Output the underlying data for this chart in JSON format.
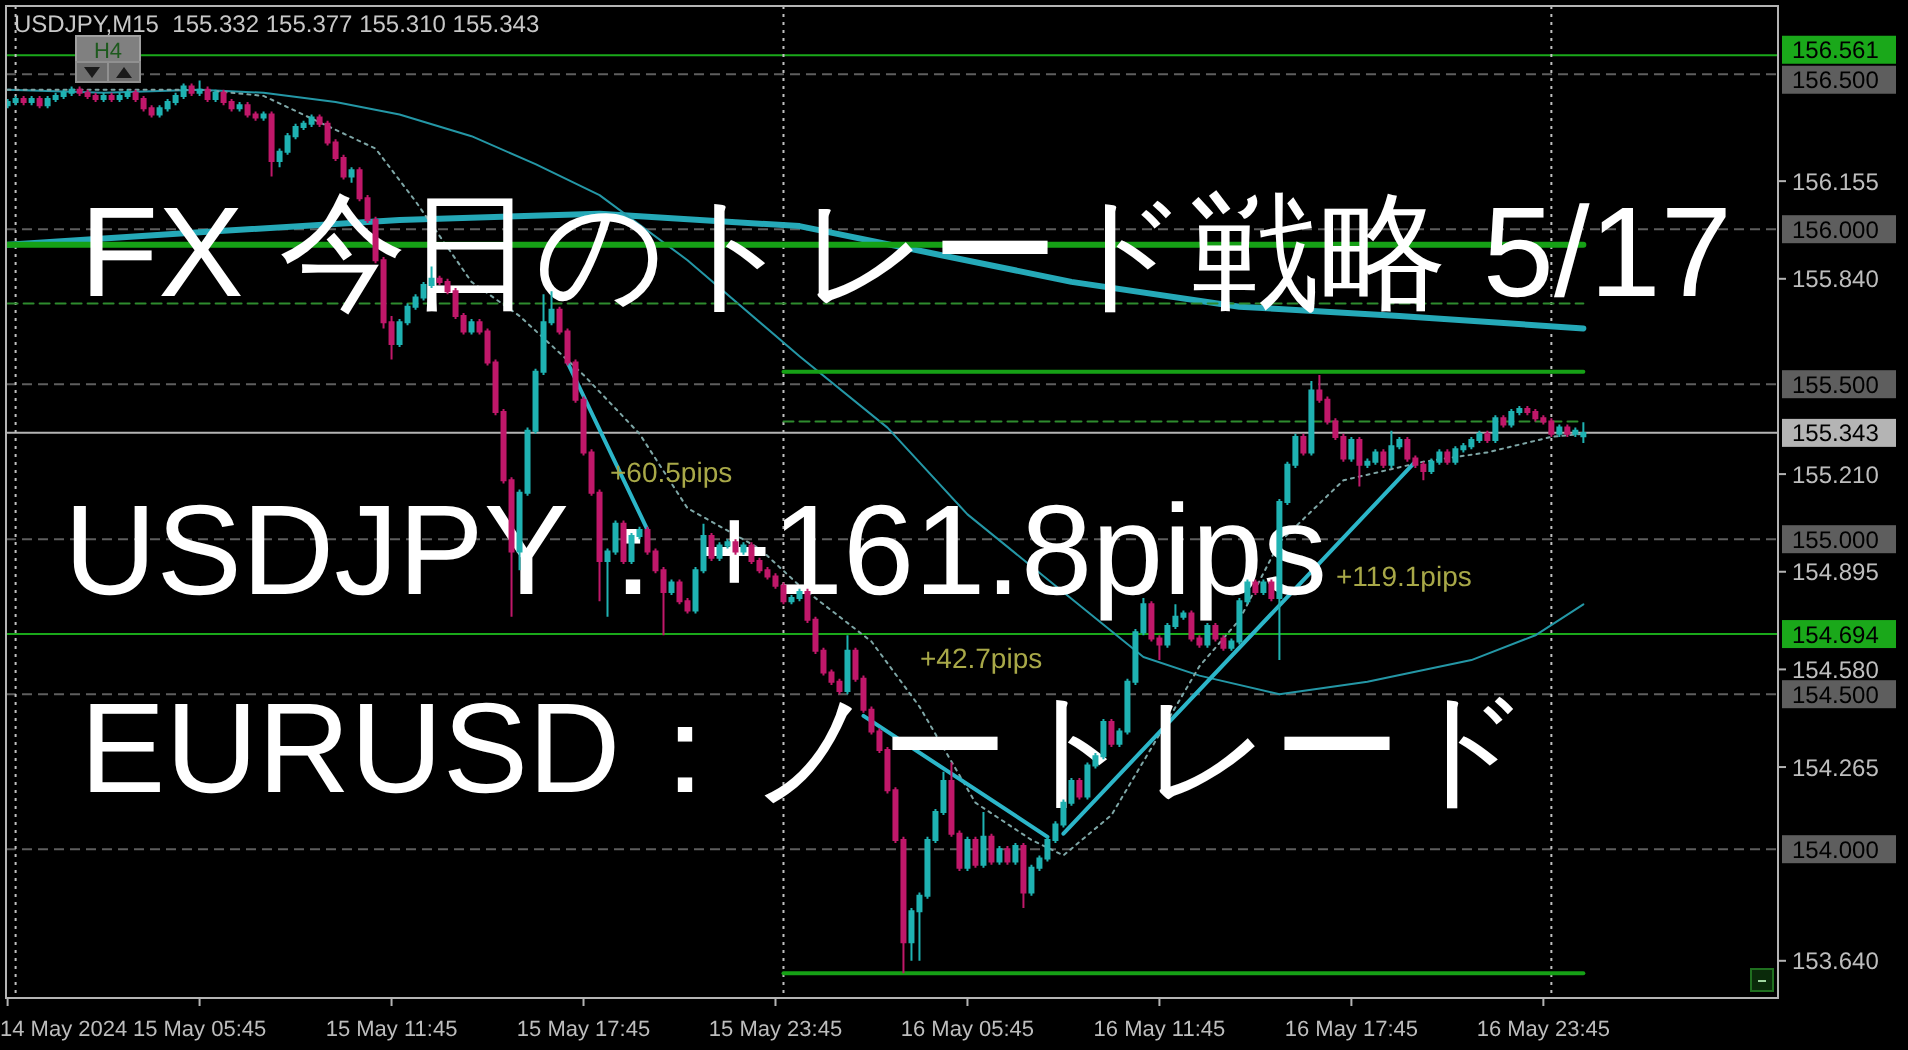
{
  "chart_data": {
    "type": "candlestick",
    "title": "FX 今日のトレード戦略 5/17",
    "subtitle": "USDJPY,M15  155.332 155.377 155.310 155.343",
    "annotations": [
      "USDJPY：+161.8pips",
      "EURUSD：ノートレード",
      "H4",
      "+60.5pips",
      "+42.7pips",
      "+119.1pips"
    ],
    "x": [
      "2024-05-14T23:45",
      "2024-05-15T00:00",
      "2024-05-15T00:15",
      "2024-05-15T00:30",
      "2024-05-15T00:45",
      "2024-05-15T01:00",
      "2024-05-15T01:15",
      "2024-05-15T01:30",
      "2024-05-15T01:45",
      "2024-05-15T02:00",
      "2024-05-15T02:15",
      "2024-05-15T02:30",
      "2024-05-15T02:45",
      "2024-05-15T03:00",
      "2024-05-15T03:15",
      "2024-05-15T03:30",
      "2024-05-15T03:45",
      "2024-05-15T04:00",
      "2024-05-15T04:15",
      "2024-05-15T04:30",
      "2024-05-15T04:45",
      "2024-05-15T05:00",
      "2024-05-15T05:15",
      "2024-05-15T05:30",
      "2024-05-15T05:45",
      "2024-05-15T06:00",
      "2024-05-15T06:15",
      "2024-05-15T06:30",
      "2024-05-15T06:45",
      "2024-05-15T07:00",
      "2024-05-15T07:15",
      "2024-05-15T07:30",
      "2024-05-15T07:45",
      "2024-05-15T08:00",
      "2024-05-15T08:15",
      "2024-05-15T08:30",
      "2024-05-15T08:45",
      "2024-05-15T09:00",
      "2024-05-15T09:15",
      "2024-05-15T09:30",
      "2024-05-15T09:45",
      "2024-05-15T10:00",
      "2024-05-15T10:15",
      "2024-05-15T10:30",
      "2024-05-15T10:45",
      "2024-05-15T11:00",
      "2024-05-15T11:15",
      "2024-05-15T11:30",
      "2024-05-15T11:45",
      "2024-05-15T12:00",
      "2024-05-15T12:15",
      "2024-05-15T12:30",
      "2024-05-15T12:45",
      "2024-05-15T13:00",
      "2024-05-15T13:15",
      "2024-05-15T13:30",
      "2024-05-15T13:45",
      "2024-05-15T14:00",
      "2024-05-15T14:15",
      "2024-05-15T14:30",
      "2024-05-15T14:45",
      "2024-05-15T15:00",
      "2024-05-15T15:15",
      "2024-05-15T15:30",
      "2024-05-15T15:45",
      "2024-05-15T16:00",
      "2024-05-15T16:15",
      "2024-05-15T16:30",
      "2024-05-15T16:45",
      "2024-05-15T17:00",
      "2024-05-15T17:15",
      "2024-05-15T17:30",
      "2024-05-15T17:45",
      "2024-05-15T18:00",
      "2024-05-15T18:15",
      "2024-05-15T18:30",
      "2024-05-15T18:45",
      "2024-05-15T19:00",
      "2024-05-15T19:15",
      "2024-05-15T19:30",
      "2024-05-15T19:45",
      "2024-05-15T20:00",
      "2024-05-15T20:15",
      "2024-05-15T20:30",
      "2024-05-15T20:45",
      "2024-05-15T21:00",
      "2024-05-15T21:15",
      "2024-05-15T21:30",
      "2024-05-15T21:45",
      "2024-05-15T22:00",
      "2024-05-15T22:15",
      "2024-05-15T22:30",
      "2024-05-15T22:45",
      "2024-05-15T23:00",
      "2024-05-15T23:15",
      "2024-05-15T23:30",
      "2024-05-15T23:45",
      "2024-05-16T00:00",
      "2024-05-16T00:15",
      "2024-05-16T00:30",
      "2024-05-16T00:45",
      "2024-05-16T01:00",
      "2024-05-16T01:15",
      "2024-05-16T01:30",
      "2024-05-16T01:45",
      "2024-05-16T02:00",
      "2024-05-16T02:15",
      "2024-05-16T02:30",
      "2024-05-16T02:45",
      "2024-05-16T03:00",
      "2024-05-16T03:15",
      "2024-05-16T03:30",
      "2024-05-16T03:45",
      "2024-05-16T04:00",
      "2024-05-16T04:15",
      "2024-05-16T04:30",
      "2024-05-16T04:45",
      "2024-05-16T05:00",
      "2024-05-16T05:15",
      "2024-05-16T05:30",
      "2024-05-16T05:45",
      "2024-05-16T06:00",
      "2024-05-16T06:15",
      "2024-05-16T06:30",
      "2024-05-16T06:45",
      "2024-05-16T07:00",
      "2024-05-16T07:15",
      "2024-05-16T07:30",
      "2024-05-16T07:45",
      "2024-05-16T08:00",
      "2024-05-16T08:15",
      "2024-05-16T08:30",
      "2024-05-16T08:45",
      "2024-05-16T09:00",
      "2024-05-16T09:15",
      "2024-05-16T09:30",
      "2024-05-16T09:45",
      "2024-05-16T10:00",
      "2024-05-16T10:15",
      "2024-05-16T10:30",
      "2024-05-16T10:45",
      "2024-05-16T11:00",
      "2024-05-16T11:15",
      "2024-05-16T11:30",
      "2024-05-16T11:45",
      "2024-05-16T12:00",
      "2024-05-16T12:15",
      "2024-05-16T12:30",
      "2024-05-16T12:45",
      "2024-05-16T13:00",
      "2024-05-16T13:15",
      "2024-05-16T13:30",
      "2024-05-16T13:45",
      "2024-05-16T14:00",
      "2024-05-16T14:15",
      "2024-05-16T14:30",
      "2024-05-16T14:45",
      "2024-05-16T15:00",
      "2024-05-16T15:15",
      "2024-05-16T15:30",
      "2024-05-16T15:45",
      "2024-05-16T16:00",
      "2024-05-16T16:15",
      "2024-05-16T16:30",
      "2024-05-16T16:45",
      "2024-05-16T17:00",
      "2024-05-16T17:15",
      "2024-05-16T17:30",
      "2024-05-16T17:45",
      "2024-05-16T18:00",
      "2024-05-16T18:15",
      "2024-05-16T18:30",
      "2024-05-16T18:45",
      "2024-05-16T19:00",
      "2024-05-16T19:15",
      "2024-05-16T19:30",
      "2024-05-16T19:45",
      "2024-05-16T20:00",
      "2024-05-16T20:15",
      "2024-05-16T20:30",
      "2024-05-16T20:45",
      "2024-05-16T21:00",
      "2024-05-16T21:15",
      "2024-05-16T21:30",
      "2024-05-16T21:45",
      "2024-05-16T22:00",
      "2024-05-16T22:15",
      "2024-05-16T22:30",
      "2024-05-16T22:45",
      "2024-05-16T23:00",
      "2024-05-16T23:15",
      "2024-05-16T23:30",
      "2024-05-16T23:45",
      "2024-05-17T00:00",
      "2024-05-17T00:15",
      "2024-05-17T00:30",
      "2024-05-17T00:45",
      "2024-05-17T01:00"
    ],
    "ohlc": [
      [
        156.4,
        156.42,
        156.39,
        156.41
      ],
      [
        156.41,
        156.43,
        156.4,
        156.42
      ],
      [
        156.42,
        156.43,
        156.4,
        156.41
      ],
      [
        156.41,
        156.43,
        156.4,
        156.42
      ],
      [
        156.42,
        156.43,
        156.39,
        156.4
      ],
      [
        156.4,
        156.43,
        156.39,
        156.42
      ],
      [
        156.42,
        156.44,
        156.41,
        156.43
      ],
      [
        156.43,
        156.45,
        156.42,
        156.44
      ],
      [
        156.44,
        156.46,
        156.43,
        156.45
      ],
      [
        156.45,
        156.46,
        156.43,
        156.44
      ],
      [
        156.44,
        156.45,
        156.42,
        156.43
      ],
      [
        156.43,
        156.44,
        156.41,
        156.42
      ],
      [
        156.42,
        156.44,
        156.41,
        156.43
      ],
      [
        156.43,
        156.44,
        156.41,
        156.42
      ],
      [
        156.42,
        156.44,
        156.41,
        156.43
      ],
      [
        156.43,
        156.45,
        156.42,
        156.44
      ],
      [
        156.44,
        156.45,
        156.41,
        156.42
      ],
      [
        156.42,
        156.43,
        156.38,
        156.39
      ],
      [
        156.39,
        156.4,
        156.36,
        156.37
      ],
      [
        156.37,
        156.4,
        156.36,
        156.39
      ],
      [
        156.39,
        156.42,
        156.38,
        156.41
      ],
      [
        156.41,
        156.44,
        156.4,
        156.43
      ],
      [
        156.43,
        156.47,
        156.42,
        156.46
      ],
      [
        156.46,
        156.47,
        156.43,
        156.44
      ],
      [
        156.44,
        156.48,
        156.43,
        156.45
      ],
      [
        156.45,
        156.46,
        156.41,
        156.42
      ],
      [
        156.42,
        156.45,
        156.41,
        156.44
      ],
      [
        156.44,
        156.45,
        156.4,
        156.41
      ],
      [
        156.41,
        156.42,
        156.38,
        156.39
      ],
      [
        156.39,
        156.41,
        156.38,
        156.4
      ],
      [
        156.4,
        156.41,
        156.36,
        156.37
      ],
      [
        156.37,
        156.38,
        156.35,
        156.36
      ],
      [
        156.36,
        156.38,
        156.35,
        156.37
      ],
      [
        156.37,
        156.38,
        156.17,
        156.22
      ],
      [
        156.22,
        156.26,
        156.2,
        156.25
      ],
      [
        156.25,
        156.31,
        156.24,
        156.3
      ],
      [
        156.3,
        156.34,
        156.29,
        156.33
      ],
      [
        156.33,
        156.35,
        156.32,
        156.34
      ],
      [
        156.34,
        156.37,
        156.33,
        156.36
      ],
      [
        156.36,
        156.37,
        156.33,
        156.34
      ],
      [
        156.34,
        156.35,
        156.27,
        156.28
      ],
      [
        156.28,
        156.29,
        156.22,
        156.23
      ],
      [
        156.23,
        156.24,
        156.16,
        156.17
      ],
      [
        156.17,
        156.2,
        156.15,
        156.19
      ],
      [
        156.19,
        156.2,
        156.09,
        156.1
      ],
      [
        156.1,
        156.11,
        156.02,
        156.03
      ],
      [
        156.03,
        156.04,
        155.89,
        155.9
      ],
      [
        155.9,
        155.91,
        155.68,
        155.7
      ],
      [
        155.7,
        155.72,
        155.58,
        155.63
      ],
      [
        155.63,
        155.71,
        155.62,
        155.7
      ],
      [
        155.7,
        155.76,
        155.69,
        155.75
      ],
      [
        155.75,
        155.79,
        155.74,
        155.78
      ],
      [
        155.78,
        155.83,
        155.77,
        155.82
      ],
      [
        155.82,
        155.88,
        155.81,
        155.84
      ],
      [
        155.84,
        155.85,
        155.82,
        155.83
      ],
      [
        155.83,
        155.84,
        155.79,
        155.8
      ],
      [
        155.8,
        155.81,
        155.71,
        155.72
      ],
      [
        155.72,
        155.73,
        155.66,
        155.67
      ],
      [
        155.67,
        155.71,
        155.66,
        155.7
      ],
      [
        155.7,
        155.71,
        155.66,
        155.67
      ],
      [
        155.67,
        155.68,
        155.56,
        155.57
      ],
      [
        155.57,
        155.58,
        155.4,
        155.41
      ],
      [
        155.41,
        155.42,
        155.18,
        155.19
      ],
      [
        155.19,
        155.2,
        154.75,
        154.96
      ],
      [
        154.96,
        155.16,
        154.9,
        155.15
      ],
      [
        155.15,
        155.36,
        155.14,
        155.35
      ],
      [
        155.35,
        155.55,
        155.34,
        155.54
      ],
      [
        155.54,
        155.79,
        155.53,
        155.7
      ],
      [
        155.7,
        155.8,
        155.69,
        155.74
      ],
      [
        155.74,
        155.75,
        155.66,
        155.67
      ],
      [
        155.67,
        155.68,
        155.56,
        155.57
      ],
      [
        155.57,
        155.58,
        155.44,
        155.45
      ],
      [
        155.45,
        155.46,
        155.27,
        155.28
      ],
      [
        155.28,
        155.29,
        155.14,
        155.15
      ],
      [
        155.15,
        155.16,
        154.8,
        154.93
      ],
      [
        154.93,
        154.97,
        154.75,
        154.96
      ],
      [
        154.96,
        155.06,
        154.95,
        155.05
      ],
      [
        155.05,
        155.06,
        154.92,
        154.93
      ],
      [
        154.93,
        155.02,
        154.92,
        155.01
      ],
      [
        155.01,
        155.04,
        155.0,
        155.03
      ],
      [
        155.03,
        155.04,
        154.95,
        154.96
      ],
      [
        154.96,
        154.97,
        154.89,
        154.9
      ],
      [
        154.9,
        154.91,
        154.69,
        154.83
      ],
      [
        154.83,
        154.87,
        154.82,
        154.86
      ],
      [
        154.86,
        154.87,
        154.79,
        154.8
      ],
      [
        154.8,
        154.81,
        154.76,
        154.77
      ],
      [
        154.77,
        154.91,
        154.76,
        154.9
      ],
      [
        154.9,
        155.05,
        154.89,
        155.01
      ],
      [
        155.01,
        155.02,
        154.93,
        154.94
      ],
      [
        154.94,
        154.99,
        154.93,
        154.98
      ],
      [
        154.98,
        155.0,
        154.97,
        154.99
      ],
      [
        154.99,
        155.0,
        154.95,
        154.96
      ],
      [
        154.96,
        154.99,
        154.95,
        154.98
      ],
      [
        154.98,
        154.99,
        154.92,
        154.93
      ],
      [
        154.93,
        154.94,
        154.89,
        154.9
      ],
      [
        154.9,
        154.91,
        154.87,
        154.88
      ],
      [
        154.88,
        154.89,
        154.84,
        154.85
      ],
      [
        154.85,
        154.86,
        154.79,
        154.8
      ],
      [
        154.8,
        154.82,
        154.79,
        154.81
      ],
      [
        154.81,
        154.84,
        154.8,
        154.83
      ],
      [
        154.83,
        154.84,
        154.73,
        154.74
      ],
      [
        154.74,
        154.75,
        154.63,
        154.64
      ],
      [
        154.64,
        154.65,
        154.56,
        154.57
      ],
      [
        154.57,
        154.58,
        154.53,
        154.54
      ],
      [
        154.54,
        154.55,
        154.5,
        154.51
      ],
      [
        154.51,
        154.69,
        154.5,
        154.64
      ],
      [
        154.64,
        154.65,
        154.54,
        154.55
      ],
      [
        154.55,
        154.56,
        154.44,
        154.45
      ],
      [
        154.45,
        154.46,
        154.37,
        154.38
      ],
      [
        154.38,
        154.39,
        154.31,
        154.32
      ],
      [
        154.32,
        154.33,
        154.18,
        154.19
      ],
      [
        154.19,
        154.2,
        154.02,
        154.03
      ],
      [
        154.03,
        154.04,
        153.6,
        153.7
      ],
      [
        153.7,
        153.81,
        153.64,
        153.8
      ],
      [
        153.8,
        153.86,
        153.64,
        153.85
      ],
      [
        153.85,
        154.04,
        153.84,
        154.03
      ],
      [
        154.03,
        154.13,
        154.02,
        154.12
      ],
      [
        154.12,
        154.25,
        154.11,
        154.22
      ],
      [
        154.22,
        154.28,
        154.04,
        154.05
      ],
      [
        154.05,
        154.06,
        153.93,
        153.94
      ],
      [
        153.94,
        154.04,
        153.93,
        154.03
      ],
      [
        154.03,
        154.04,
        153.94,
        153.95
      ],
      [
        153.95,
        154.12,
        153.94,
        154.04
      ],
      [
        154.04,
        154.05,
        153.95,
        153.96
      ],
      [
        153.96,
        154.01,
        153.95,
        154.0
      ],
      [
        154.0,
        154.01,
        153.95,
        153.96
      ],
      [
        153.96,
        154.02,
        153.95,
        154.01
      ],
      [
        154.01,
        154.02,
        153.81,
        153.86
      ],
      [
        153.86,
        153.95,
        153.85,
        153.94
      ],
      [
        153.94,
        153.98,
        153.93,
        153.97
      ],
      [
        153.97,
        154.04,
        153.96,
        154.03
      ],
      [
        154.03,
        154.09,
        154.02,
        154.08
      ],
      [
        154.08,
        154.16,
        154.07,
        154.15
      ],
      [
        154.15,
        154.23,
        154.14,
        154.22
      ],
      [
        154.22,
        154.23,
        154.16,
        154.17
      ],
      [
        154.17,
        154.28,
        154.16,
        154.27
      ],
      [
        154.27,
        154.31,
        154.26,
        154.3
      ],
      [
        154.3,
        154.42,
        154.29,
        154.41
      ],
      [
        154.41,
        154.42,
        154.33,
        154.34
      ],
      [
        154.34,
        154.39,
        154.33,
        154.38
      ],
      [
        154.38,
        154.55,
        154.37,
        154.54
      ],
      [
        154.54,
        154.71,
        154.53,
        154.7
      ],
      [
        154.7,
        154.81,
        154.69,
        154.79
      ],
      [
        154.79,
        154.8,
        154.67,
        154.68
      ],
      [
        154.68,
        154.69,
        154.61,
        154.66
      ],
      [
        154.66,
        154.73,
        154.65,
        154.72
      ],
      [
        154.72,
        154.79,
        154.71,
        154.75
      ],
      [
        154.75,
        154.77,
        154.74,
        154.76
      ],
      [
        154.76,
        154.77,
        154.67,
        154.68
      ],
      [
        154.68,
        154.69,
        154.65,
        154.66
      ],
      [
        154.66,
        154.73,
        154.65,
        154.72
      ],
      [
        154.72,
        154.73,
        154.67,
        154.68
      ],
      [
        154.68,
        154.69,
        154.64,
        154.65
      ],
      [
        154.65,
        154.68,
        154.64,
        154.67
      ],
      [
        154.67,
        154.81,
        154.66,
        154.8
      ],
      [
        154.8,
        154.87,
        154.79,
        154.86
      ],
      [
        154.86,
        154.87,
        154.82,
        154.83
      ],
      [
        154.83,
        154.87,
        154.82,
        154.86
      ],
      [
        154.86,
        154.87,
        154.8,
        154.81
      ],
      [
        154.81,
        155.13,
        154.61,
        155.12
      ],
      [
        155.12,
        155.25,
        155.11,
        155.24
      ],
      [
        155.24,
        155.34,
        155.23,
        155.33
      ],
      [
        155.33,
        155.34,
        155.27,
        155.28
      ],
      [
        155.28,
        155.51,
        155.27,
        155.48
      ],
      [
        155.48,
        155.53,
        155.44,
        155.45
      ],
      [
        155.45,
        155.46,
        155.37,
        155.38
      ],
      [
        155.38,
        155.39,
        155.32,
        155.33
      ],
      [
        155.33,
        155.34,
        155.25,
        155.26
      ],
      [
        155.26,
        155.33,
        155.25,
        155.32
      ],
      [
        155.32,
        155.33,
        155.17,
        155.24
      ],
      [
        155.24,
        155.26,
        155.23,
        155.25
      ],
      [
        155.25,
        155.29,
        155.24,
        155.28
      ],
      [
        155.28,
        155.29,
        155.23,
        155.24
      ],
      [
        155.24,
        155.35,
        155.23,
        155.3
      ],
      [
        155.3,
        155.33,
        155.29,
        155.32
      ],
      [
        155.32,
        155.33,
        155.25,
        155.26
      ],
      [
        155.26,
        155.27,
        155.23,
        155.24
      ],
      [
        155.24,
        155.25,
        155.19,
        155.22
      ],
      [
        155.22,
        155.26,
        155.21,
        155.25
      ],
      [
        155.25,
        155.29,
        155.24,
        155.28
      ],
      [
        155.28,
        155.29,
        155.24,
        155.25
      ],
      [
        155.25,
        155.3,
        155.24,
        155.29
      ],
      [
        155.29,
        155.31,
        155.28,
        155.3
      ],
      [
        155.3,
        155.33,
        155.29,
        155.32
      ],
      [
        155.32,
        155.35,
        155.31,
        155.34
      ],
      [
        155.34,
        155.35,
        155.31,
        155.32
      ],
      [
        155.32,
        155.4,
        155.31,
        155.39
      ],
      [
        155.39,
        155.4,
        155.36,
        155.37
      ],
      [
        155.37,
        155.42,
        155.36,
        155.41
      ],
      [
        155.41,
        155.43,
        155.4,
        155.42
      ],
      [
        155.42,
        155.43,
        155.4,
        155.41
      ],
      [
        155.41,
        155.42,
        155.38,
        155.39
      ],
      [
        155.39,
        155.4,
        155.37,
        155.38
      ],
      [
        155.38,
        155.39,
        155.33,
        155.34
      ],
      [
        155.34,
        155.37,
        155.33,
        155.36
      ],
      [
        155.36,
        155.37,
        155.33,
        155.34
      ],
      [
        155.34,
        155.36,
        155.33,
        155.35
      ],
      [
        155.332,
        155.377,
        155.31,
        155.343
      ]
    ],
    "colors": [
      "#1fb2b2",
      "#1fb2b2",
      "#c0186a",
      "#1fb2b2",
      "#c0186a",
      "#1fb2b2",
      "#1fb2b2",
      "#1fb2b2",
      "#1fb2b2",
      "#c0186a",
      "#c0186a",
      "#c0186a",
      "#1fb2b2",
      "#c0186a",
      "#1fb2b2",
      "#1fb2b2",
      "#c0186a",
      "#c0186a",
      "#c0186a",
      "#1fb2b2",
      "#1fb2b2",
      "#1fb2b2",
      "#1fb2b2",
      "#c0186a",
      "#1fb2b2",
      "#c0186a",
      "#1fb2b2",
      "#c0186a",
      "#c0186a",
      "#1fb2b2",
      "#c0186a",
      "#c0186a",
      "#1fb2b2",
      "#c0186a",
      "#1fb2b2",
      "#1fb2b2",
      "#1fb2b2",
      "#1fb2b2",
      "#1fb2b2",
      "#c0186a",
      "#c0186a",
      "#c0186a",
      "#c0186a",
      "#1fb2b2",
      "#c0186a",
      "#c0186a",
      "#c0186a",
      "#c0186a",
      "#c0186a",
      "#1fb2b2",
      "#1fb2b2",
      "#1fb2b2",
      "#1fb2b2",
      "#1fb2b2",
      "#c0186a",
      "#c0186a",
      "#c0186a",
      "#c0186a",
      "#1fb2b2",
      "#c0186a",
      "#c0186a",
      "#c0186a",
      "#c0186a",
      "#c0186a",
      "#1fb2b2",
      "#1fb2b2",
      "#1fb2b2",
      "#1fb2b2",
      "#1fb2b2",
      "#c0186a",
      "#c0186a",
      "#c0186a",
      "#c0186a",
      "#c0186a",
      "#c0186a",
      "#1fb2b2",
      "#1fb2b2",
      "#c0186a",
      "#1fb2b2",
      "#1fb2b2",
      "#c0186a",
      "#c0186a",
      "#c0186a",
      "#1fb2b2",
      "#c0186a",
      "#c0186a",
      "#1fb2b2",
      "#1fb2b2",
      "#c0186a",
      "#1fb2b2",
      "#1fb2b2",
      "#c0186a",
      "#1fb2b2",
      "#c0186a",
      "#c0186a",
      "#c0186a",
      "#c0186a",
      "#c0186a",
      "#1fb2b2",
      "#1fb2b2",
      "#c0186a",
      "#c0186a",
      "#c0186a",
      "#c0186a",
      "#c0186a",
      "#1fb2b2",
      "#c0186a",
      "#c0186a",
      "#c0186a",
      "#c0186a",
      "#c0186a",
      "#c0186a",
      "#c0186a",
      "#1fb2b2",
      "#1fb2b2",
      "#1fb2b2",
      "#1fb2b2",
      "#1fb2b2",
      "#c0186a",
      "#c0186a",
      "#1fb2b2",
      "#c0186a",
      "#1fb2b2",
      "#c0186a",
      "#1fb2b2",
      "#c0186a",
      "#1fb2b2",
      "#c0186a",
      "#1fb2b2",
      "#1fb2b2",
      "#1fb2b2",
      "#1fb2b2",
      "#1fb2b2",
      "#1fb2b2",
      "#c0186a",
      "#1fb2b2",
      "#1fb2b2",
      "#1fb2b2",
      "#c0186a",
      "#1fb2b2",
      "#1fb2b2",
      "#1fb2b2",
      "#1fb2b2",
      "#c0186a",
      "#c0186a",
      "#1fb2b2",
      "#1fb2b2",
      "#1fb2b2",
      "#c0186a",
      "#c0186a",
      "#1fb2b2",
      "#c0186a",
      "#c0186a",
      "#1fb2b2",
      "#1fb2b2",
      "#1fb2b2",
      "#c0186a",
      "#1fb2b2",
      "#c0186a",
      "#1fb2b2",
      "#1fb2b2",
      "#1fb2b2",
      "#c0186a",
      "#1fb2b2",
      "#c0186a",
      "#c0186a",
      "#c0186a",
      "#c0186a",
      "#1fb2b2",
      "#c0186a",
      "#1fb2b2",
      "#1fb2b2",
      "#c0186a",
      "#1fb2b2",
      "#1fb2b2",
      "#c0186a",
      "#c0186a",
      "#c0186a",
      "#1fb2b2",
      "#1fb2b2",
      "#c0186a",
      "#1fb2b2",
      "#1fb2b2",
      "#1fb2b2",
      "#1fb2b2",
      "#c0186a",
      "#1fb2b2",
      "#c0186a",
      "#1fb2b2",
      "#1fb2b2",
      "#c0186a",
      "#c0186a",
      "#c0186a",
      "#c0186a",
      "#1fb2b2",
      "#c0186a",
      "#1fb2b2",
      "#1fb2b2"
    ],
    "series": [
      {
        "type": "line",
        "color": "#25a9b8",
        "x": [
          "2024-05-14T23:45",
          "2024-05-15T05:45",
          "2024-05-15T12:00",
          "2024-05-15T18:15",
          "2024-05-16T00:30",
          "2024-05-16T04:45",
          "2024-05-16T09:00",
          "2024-05-16T14:15",
          "2024-05-16T19:15",
          "2024-05-17T01:00"
        ],
        "values": [
          155.95,
          155.99,
          156.03,
          156.05,
          156.01,
          155.92,
          155.83,
          155.75,
          155.72,
          155.68
        ]
      },
      {
        "type": "line",
        "color": "#2497a6",
        "x": [
          "2024-05-14T23:45",
          "2024-05-15T02:45",
          "2024-05-15T05:45",
          "2024-05-15T07:45",
          "2024-05-15T10:00",
          "2024-05-15T12:00",
          "2024-05-15T14:15",
          "2024-05-15T16:15",
          "2024-05-15T18:15",
          "2024-05-15T21:00",
          "2024-05-16T00:30",
          "2024-05-16T03:15",
          "2024-05-16T05:45",
          "2024-05-16T08:30",
          "2024-05-16T11:15",
          "2024-05-16T13:00",
          "2024-05-16T15:30",
          "2024-05-16T18:15",
          "2024-05-16T21:30",
          "2024-05-16T23:30",
          "2024-05-17T01:00"
        ],
        "values": [
          156.45,
          156.44,
          156.45,
          156.44,
          156.41,
          156.37,
          156.3,
          156.21,
          156.11,
          155.9,
          155.59,
          155.36,
          155.08,
          154.85,
          154.62,
          154.56,
          154.5,
          154.54,
          154.61,
          154.69,
          154.79
        ]
      },
      {
        "type": "line",
        "color": "#7ea6a6",
        "line_style": "dotted",
        "x": [
          "2024-05-14T23:45",
          "2024-05-15T05:45",
          "2024-05-15T07:45",
          "2024-05-15T11:15",
          "2024-05-15T12:30",
          "2024-05-15T14:15",
          "2024-05-15T15:45",
          "2024-05-15T17:45",
          "2024-05-15T19:30",
          "2024-05-15T21:00",
          "2024-05-15T23:15",
          "2024-05-16T00:30",
          "2024-05-16T02:45",
          "2024-05-16T04:15",
          "2024-05-16T06:00",
          "2024-05-16T07:45",
          "2024-05-16T08:45",
          "2024-05-16T10:15",
          "2024-05-16T11:45",
          "2024-05-16T13:00",
          "2024-05-16T14:15",
          "2024-05-16T15:30",
          "2024-05-16T17:30",
          "2024-05-16T20:00",
          "2024-05-16T22:00",
          "2024-05-17T00:00",
          "2024-05-17T01:00"
        ],
        "values": [
          156.45,
          156.45,
          156.43,
          156.26,
          156.09,
          155.83,
          155.72,
          155.53,
          155.34,
          155.1,
          154.97,
          154.85,
          154.67,
          154.46,
          154.15,
          154.03,
          153.98,
          154.11,
          154.37,
          154.59,
          154.74,
          154.99,
          155.19,
          155.25,
          155.28,
          155.33,
          155.34
        ]
      },
      {
        "type": "line",
        "color": "#2cb6c9",
        "x": [
          "2024-05-15T17:15",
          "2024-05-15T19:45"
        ],
        "values": [
          155.57,
          155.03
        ]
      },
      {
        "type": "line",
        "color": "#2cb6c9",
        "x": [
          "2024-05-16T02:30",
          "2024-05-16T08:15"
        ],
        "values": [
          154.43,
          154.04
        ]
      },
      {
        "type": "line",
        "color": "#2cb6c9",
        "x": [
          "2024-05-16T08:45",
          "2024-05-16T19:45"
        ],
        "values": [
          154.05,
          155.25
        ]
      },
      {
        "type": "line",
        "color": "#16a016",
        "x": [
          "2024-05-14T23:45",
          "2024-05-17T01:00"
        ],
        "values": [
          155.95,
          155.95
        ]
      },
      {
        "type": "line",
        "color": "#2e8b2e",
        "line_style": "dashed",
        "x": [
          "2024-05-14T23:45",
          "2024-05-17T01:00"
        ],
        "values": [
          155.76,
          155.76
        ]
      },
      {
        "type": "line",
        "color": "#16a016",
        "x": [
          "2024-05-16T00:00",
          "2024-05-17T01:00"
        ],
        "values": [
          155.54,
          155.54
        ]
      },
      {
        "type": "line",
        "color": "#2e8b2e",
        "line_style": "dashed",
        "x": [
          "2024-05-16T00:00",
          "2024-05-17T01:00"
        ],
        "values": [
          155.38,
          155.38
        ]
      },
      {
        "type": "line",
        "color": "#16a016",
        "x": [
          "2024-05-16T00:00",
          "2024-05-17T01:00"
        ],
        "values": [
          153.6,
          153.6
        ]
      }
    ],
    "xlim": [
      "2024-05-14T23:42",
      "2024-05-17T07:05"
    ],
    "xticks": [
      {
        "value": "2024-05-14T23:45",
        "label": "14 May 2024"
      },
      {
        "value": "2024-05-15T05:45",
        "label": "15 May 05:45"
      },
      {
        "value": "2024-05-15T11:45",
        "label": "15 May 11:45"
      },
      {
        "value": "2024-05-15T17:45",
        "label": "15 May 17:45"
      },
      {
        "value": "2024-05-15T23:45",
        "label": "15 May 23:45"
      },
      {
        "value": "2024-05-16T05:45",
        "label": "16 May 05:45"
      },
      {
        "value": "2024-05-16T11:45",
        "label": "16 May 11:45"
      },
      {
        "value": "2024-05-16T17:45",
        "label": "16 May 17:45"
      },
      {
        "value": "2024-05-16T23:45",
        "label": "16 May 23:45"
      }
    ],
    "ylim": [
      153.52,
      156.72
    ],
    "yticks": [
      156.155,
      {
        "value": 155.84,
        "label": "155.840"
      },
      {
        "value": 155.21,
        "label": "155.210"
      },
      154.895,
      {
        "value": 154.58,
        "label": "154.580"
      },
      154.265,
      {
        "value": 153.64,
        "label": "153.640"
      }
    ],
    "ref_lines": [
      {
        "axis": "y",
        "value": 156.561,
        "label": "156.561",
        "color": "#1aa81a"
      },
      {
        "axis": "y",
        "value": 156.5,
        "label": "156.500",
        "color": "#5e5e5e",
        "line_style": "dashed"
      },
      {
        "axis": "y",
        "value": 156.0,
        "label": "156.000",
        "color": "#5e5e5e",
        "line_style": "dashed"
      },
      {
        "axis": "y",
        "value": 155.5,
        "label": "155.500",
        "color": "#5e5e5e",
        "line_style": "dashed"
      },
      {
        "axis": "y",
        "value": 155.343,
        "label": "155.343",
        "color": "#b4b4b4"
      },
      {
        "axis": "y",
        "value": 155.0,
        "label": "155.000",
        "color": "#5e5e5e",
        "line_style": "dashed"
      },
      {
        "axis": "y",
        "value": 154.694,
        "label": "154.694",
        "color": "#1aa81a"
      },
      {
        "axis": "y",
        "value": 154.5,
        "label": "154.500",
        "color": "#5e5e5e",
        "line_style": "dashed"
      },
      {
        "axis": "y",
        "value": 154.0,
        "label": "154.000",
        "color": "#5e5e5e",
        "line_style": "dashed"
      },
      {
        "axis": "x",
        "value": "2024-05-15T00:00",
        "color": "#c0c0c0",
        "line_style": "dotted"
      },
      {
        "axis": "x",
        "value": "2024-05-16T00:00",
        "color": "#c0c0c0",
        "line_style": "dotted"
      },
      {
        "axis": "x",
        "value": "2024-05-17T00:00",
        "color": "#c0c0c0",
        "line_style": "dotted"
      }
    ]
  }
}
